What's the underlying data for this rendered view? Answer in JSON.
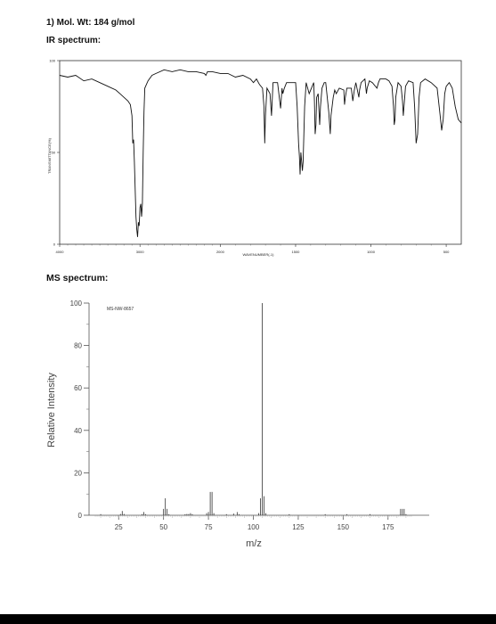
{
  "header": {
    "mol_wt": "1) Mol. Wt: 184 g/mol",
    "ir_heading": "IR spectrum:",
    "ms_heading": "MS spectrum:"
  },
  "chart_data": [
    {
      "type": "line",
      "id": "ir",
      "xlabel": "WAVENUMBER(-1)",
      "ylabel": "TRANSMITTANCE(%)",
      "xlim": [
        4000,
        400
      ],
      "ylim": [
        0,
        100
      ],
      "x_ticks": [
        "4000",
        "3000",
        "2000",
        "1500",
        "1000",
        "500"
      ],
      "y_ticks": [
        "100",
        "50",
        "0"
      ],
      "points": [
        [
          4000,
          92
        ],
        [
          3900,
          91
        ],
        [
          3800,
          92
        ],
        [
          3700,
          89
        ],
        [
          3600,
          90
        ],
        [
          3500,
          88
        ],
        [
          3400,
          86
        ],
        [
          3300,
          84
        ],
        [
          3250,
          82
        ],
        [
          3200,
          80
        ],
        [
          3150,
          78
        ],
        [
          3120,
          76
        ],
        [
          3100,
          70
        ],
        [
          3090,
          55
        ],
        [
          3080,
          57
        ],
        [
          3070,
          45
        ],
        [
          3060,
          30
        ],
        [
          3050,
          15
        ],
        [
          3040,
          8
        ],
        [
          3030,
          4
        ],
        [
          3020,
          12
        ],
        [
          3010,
          10
        ],
        [
          3000,
          20
        ],
        [
          2990,
          22
        ],
        [
          2980,
          15
        ],
        [
          2970,
          22
        ],
        [
          2960,
          50
        ],
        [
          2950,
          72
        ],
        [
          2940,
          85
        ],
        [
          2900,
          89
        ],
        [
          2850,
          92
        ],
        [
          2800,
          93
        ],
        [
          2700,
          95
        ],
        [
          2600,
          94
        ],
        [
          2500,
          95
        ],
        [
          2400,
          94
        ],
        [
          2300,
          94
        ],
        [
          2200,
          93
        ],
        [
          2180,
          92
        ],
        [
          2160,
          94
        ],
        [
          2100,
          94
        ],
        [
          2000,
          93
        ],
        [
          1950,
          93
        ],
        [
          1900,
          91
        ],
        [
          1850,
          92
        ],
        [
          1800,
          90
        ],
        [
          1780,
          88
        ],
        [
          1760,
          90
        ],
        [
          1740,
          87
        ],
        [
          1720,
          85
        ],
        [
          1710,
          75
        ],
        [
          1705,
          55
        ],
        [
          1700,
          70
        ],
        [
          1690,
          85
        ],
        [
          1670,
          82
        ],
        [
          1660,
          70
        ],
        [
          1650,
          88
        ],
        [
          1620,
          88
        ],
        [
          1600,
          74
        ],
        [
          1590,
          85
        ],
        [
          1585,
          82
        ],
        [
          1575,
          85
        ],
        [
          1560,
          88
        ],
        [
          1500,
          88
        ],
        [
          1490,
          75
        ],
        [
          1480,
          55
        ],
        [
          1475,
          48
        ],
        [
          1470,
          38
        ],
        [
          1465,
          50
        ],
        [
          1455,
          40
        ],
        [
          1450,
          45
        ],
        [
          1440,
          75
        ],
        [
          1430,
          88
        ],
        [
          1420,
          85
        ],
        [
          1410,
          82
        ],
        [
          1380,
          88
        ],
        [
          1375,
          78
        ],
        [
          1370,
          60
        ],
        [
          1365,
          65
        ],
        [
          1360,
          80
        ],
        [
          1350,
          82
        ],
        [
          1340,
          65
        ],
        [
          1335,
          75
        ],
        [
          1325,
          85
        ],
        [
          1310,
          88
        ],
        [
          1300,
          88
        ],
        [
          1280,
          72
        ],
        [
          1270,
          60
        ],
        [
          1265,
          70
        ],
        [
          1250,
          80
        ],
        [
          1240,
          84
        ],
        [
          1230,
          82
        ],
        [
          1210,
          85
        ],
        [
          1180,
          84
        ],
        [
          1175,
          76
        ],
        [
          1170,
          80
        ],
        [
          1160,
          85
        ],
        [
          1130,
          85
        ],
        [
          1120,
          78
        ],
        [
          1110,
          84
        ],
        [
          1100,
          88
        ],
        [
          1080,
          80
        ],
        [
          1075,
          84
        ],
        [
          1065,
          88
        ],
        [
          1040,
          90
        ],
        [
          1030,
          82
        ],
        [
          1025,
          85
        ],
        [
          1010,
          89
        ],
        [
          990,
          88
        ],
        [
          960,
          85
        ],
        [
          950,
          88
        ],
        [
          940,
          90
        ],
        [
          900,
          90
        ],
        [
          880,
          89
        ],
        [
          860,
          86
        ],
        [
          850,
          75
        ],
        [
          845,
          65
        ],
        [
          840,
          68
        ],
        [
          835,
          80
        ],
        [
          820,
          88
        ],
        [
          800,
          86
        ],
        [
          790,
          78
        ],
        [
          785,
          70
        ],
        [
          780,
          75
        ],
        [
          770,
          86
        ],
        [
          750,
          89
        ],
        [
          720,
          88
        ],
        [
          710,
          75
        ],
        [
          700,
          55
        ],
        [
          690,
          60
        ],
        [
          680,
          80
        ],
        [
          670,
          88
        ],
        [
          640,
          90
        ],
        [
          600,
          88
        ],
        [
          560,
          85
        ],
        [
          540,
          70
        ],
        [
          530,
          62
        ],
        [
          520,
          68
        ],
        [
          510,
          82
        ],
        [
          500,
          86
        ],
        [
          480,
          88
        ],
        [
          460,
          85
        ],
        [
          440,
          75
        ],
        [
          420,
          68
        ],
        [
          400,
          66
        ]
      ]
    },
    {
      "type": "bar",
      "id": "ms",
      "title": "MS-NW-8657",
      "xlabel": "m/z",
      "ylabel": "Relative Intensity",
      "xlim": [
        10,
        190
      ],
      "ylim": [
        0,
        100
      ],
      "x_ticks": [
        25,
        50,
        75,
        100,
        125,
        150,
        175
      ],
      "y_ticks": [
        0,
        20,
        40,
        60,
        80,
        100
      ],
      "peaks": [
        [
          15,
          0.5
        ],
        [
          26,
          0.6
        ],
        [
          27,
          2
        ],
        [
          28,
          0.6
        ],
        [
          38,
          0.5
        ],
        [
          39,
          1.5
        ],
        [
          40,
          0.5
        ],
        [
          50,
          3
        ],
        [
          51,
          8
        ],
        [
          52,
          3
        ],
        [
          53,
          0.5
        ],
        [
          62,
          0.5
        ],
        [
          63,
          0.6
        ],
        [
          64,
          0.6
        ],
        [
          65,
          1
        ],
        [
          66,
          0.5
        ],
        [
          74,
          1
        ],
        [
          75,
          1.5
        ],
        [
          76,
          11
        ],
        [
          77,
          11
        ],
        [
          78,
          1
        ],
        [
          85,
          0.5
        ],
        [
          89,
          0.8
        ],
        [
          91,
          1.5
        ],
        [
          92,
          0.5
        ],
        [
          103,
          1
        ],
        [
          104,
          8
        ],
        [
          105,
          100
        ],
        [
          106,
          9
        ],
        [
          107,
          1
        ],
        [
          120,
          0.5
        ],
        [
          140,
          0.5
        ],
        [
          152,
          0.5
        ],
        [
          165,
          0.5
        ],
        [
          182,
          3
        ],
        [
          183,
          3
        ],
        [
          184,
          3
        ],
        [
          185,
          0.5
        ]
      ]
    }
  ]
}
